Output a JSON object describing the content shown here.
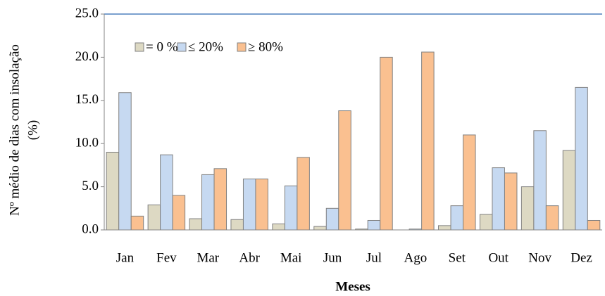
{
  "chart_data": {
    "type": "bar",
    "y_label": [
      "Nº médio de dias com insolação",
      "(%)"
    ],
    "x_label": "Meses",
    "categories": [
      "Jan",
      "Fev",
      "Mar",
      "Abr",
      "Mai",
      "Jun",
      "Jul",
      "Ago",
      "Set",
      "Out",
      "Nov",
      "Dez"
    ],
    "series": [
      {
        "name": "= 0 %",
        "color": "#ddd9c3",
        "values": [
          9.0,
          2.9,
          1.3,
          1.2,
          0.7,
          0.4,
          0.1,
          0.0,
          0.5,
          1.8,
          5.0,
          9.2
        ]
      },
      {
        "name": "≤ 20%",
        "color": "#c6d9f1",
        "values": [
          15.9,
          8.7,
          6.4,
          5.9,
          5.1,
          2.5,
          1.1,
          0.1,
          2.8,
          7.2,
          11.5,
          16.5
        ]
      },
      {
        "name": "≥ 80%",
        "color": "#fac090",
        "values": [
          1.6,
          4.0,
          7.1,
          5.9,
          8.4,
          13.8,
          20.0,
          20.6,
          11.0,
          6.6,
          2.8,
          1.1
        ]
      }
    ],
    "ylim": [
      0,
      25
    ],
    "yticks": [
      {
        "value": 0,
        "label": "0.0"
      },
      {
        "value": 5,
        "label": "5.0"
      },
      {
        "value": 10,
        "label": "10.0"
      },
      {
        "value": 15,
        "label": "15.0"
      },
      {
        "value": 20,
        "label": "20.0"
      },
      {
        "value": 25,
        "label": "25.0"
      }
    ],
    "legend": "top-left"
  }
}
